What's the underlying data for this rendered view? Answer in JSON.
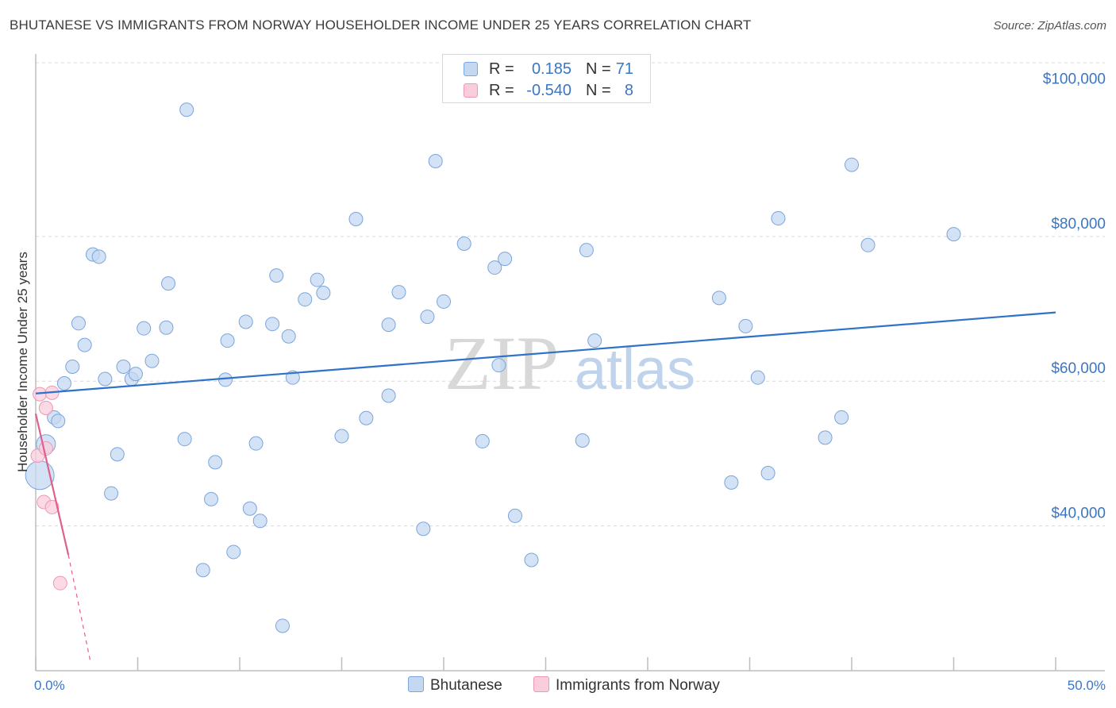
{
  "title": "BHUTANESE VS IMMIGRANTS FROM NORWAY HOUSEHOLDER INCOME UNDER 25 YEARS CORRELATION CHART",
  "source": "Source: ZipAtlas.com",
  "watermark": {
    "zip": "ZIP",
    "atlas": "atlas"
  },
  "legend": {
    "rows": [
      {
        "r_label": "R =",
        "r_value": "0.185",
        "n_label": "N =",
        "n_value": "71"
      },
      {
        "r_label": "R =",
        "r_value": "-0.540",
        "n_label": "N =",
        "n_value": "8"
      }
    ]
  },
  "bottom_legend": {
    "series_a": "Bhutanese",
    "series_b": "Immigrants from Norway"
  },
  "chart_data": {
    "type": "scatter",
    "title": "BHUTANESE VS IMMIGRANTS FROM NORWAY HOUSEHOLDER INCOME UNDER 25 YEARS CORRELATION CHART",
    "xlabel": "",
    "ylabel": "Householder Income Under 25 years",
    "xlim": [
      0,
      50
    ],
    "ylim": [
      20000,
      104000
    ],
    "x_tick_labels": [
      {
        "value": 0,
        "label": "0.0%"
      },
      {
        "value": 50,
        "label": "50.0%"
      }
    ],
    "y_ticks": [
      {
        "value": 40000,
        "label": "$40,000"
      },
      {
        "value": 60000,
        "label": "$60,000"
      },
      {
        "value": 80000,
        "label": "$80,000"
      },
      {
        "value": 100000,
        "label": "$100,000"
      }
    ],
    "colors": {
      "blue_fill": "#c5d8f2",
      "blue_stroke": "#7aa5de",
      "blue_line": "#2f72c9",
      "pink_fill": "#f9cddc",
      "pink_stroke": "#ee98b5",
      "pink_line": "#e05f8e",
      "grid": "#d9d9d9",
      "axis": "#bdbdbd",
      "watermark": "#d8d8d8",
      "watermark_atlas": "#c0d3ec"
    },
    "series": [
      {
        "name": "Bhutanese",
        "r": 0.185,
        "n": 71,
        "trend": {
          "x": [
            0,
            50
          ],
          "y": [
            58300,
            69500
          ]
        },
        "points": [
          {
            "x": 0.2,
            "y": 47000,
            "s": 3
          },
          {
            "x": 0.5,
            "y": 51300,
            "s": 2
          },
          {
            "x": 0.9,
            "y": 55000
          },
          {
            "x": 1.1,
            "y": 54500
          },
          {
            "x": 1.4,
            "y": 59700
          },
          {
            "x": 1.8,
            "y": 62000
          },
          {
            "x": 2.1,
            "y": 68000
          },
          {
            "x": 2.4,
            "y": 65000
          },
          {
            "x": 2.8,
            "y": 77500
          },
          {
            "x": 3.1,
            "y": 77200
          },
          {
            "x": 3.4,
            "y": 60300
          },
          {
            "x": 3.7,
            "y": 44500
          },
          {
            "x": 4.0,
            "y": 49900
          },
          {
            "x": 4.3,
            "y": 62000
          },
          {
            "x": 4.7,
            "y": 60300
          },
          {
            "x": 4.9,
            "y": 61000
          },
          {
            "x": 5.3,
            "y": 67300
          },
          {
            "x": 5.7,
            "y": 62800
          },
          {
            "x": 6.4,
            "y": 67400
          },
          {
            "x": 6.5,
            "y": 73500
          },
          {
            "x": 7.4,
            "y": 97500
          },
          {
            "x": 7.3,
            "y": 52000
          },
          {
            "x": 8.2,
            "y": 33900
          },
          {
            "x": 8.6,
            "y": 43700
          },
          {
            "x": 8.8,
            "y": 48800
          },
          {
            "x": 9.3,
            "y": 60200
          },
          {
            "x": 9.4,
            "y": 65600
          },
          {
            "x": 9.7,
            "y": 36400
          },
          {
            "x": 10.3,
            "y": 68200
          },
          {
            "x": 10.5,
            "y": 42400
          },
          {
            "x": 10.8,
            "y": 51400
          },
          {
            "x": 11.0,
            "y": 40700
          },
          {
            "x": 11.6,
            "y": 67900
          },
          {
            "x": 11.8,
            "y": 74600
          },
          {
            "x": 12.1,
            "y": 26200
          },
          {
            "x": 12.4,
            "y": 66200
          },
          {
            "x": 12.6,
            "y": 60500
          },
          {
            "x": 13.2,
            "y": 71300
          },
          {
            "x": 13.8,
            "y": 74000
          },
          {
            "x": 14.1,
            "y": 72200
          },
          {
            "x": 15.0,
            "y": 52400
          },
          {
            "x": 15.7,
            "y": 82400
          },
          {
            "x": 16.2,
            "y": 54900
          },
          {
            "x": 17.3,
            "y": 58000
          },
          {
            "x": 17.3,
            "y": 67800
          },
          {
            "x": 17.8,
            "y": 72300
          },
          {
            "x": 19.0,
            "y": 39600
          },
          {
            "x": 19.2,
            "y": 68900
          },
          {
            "x": 19.6,
            "y": 90400
          },
          {
            "x": 20.0,
            "y": 71000
          },
          {
            "x": 21.0,
            "y": 79000
          },
          {
            "x": 21.9,
            "y": 51700
          },
          {
            "x": 22.5,
            "y": 75700
          },
          {
            "x": 22.7,
            "y": 62200
          },
          {
            "x": 23.0,
            "y": 76900
          },
          {
            "x": 23.5,
            "y": 41400
          },
          {
            "x": 24.3,
            "y": 35300
          },
          {
            "x": 26.8,
            "y": 51800
          },
          {
            "x": 27.0,
            "y": 78100
          },
          {
            "x": 27.4,
            "y": 65600
          },
          {
            "x": 33.5,
            "y": 71500
          },
          {
            "x": 34.1,
            "y": 46000
          },
          {
            "x": 34.8,
            "y": 67600
          },
          {
            "x": 35.4,
            "y": 60500
          },
          {
            "x": 35.9,
            "y": 47300
          },
          {
            "x": 36.4,
            "y": 82500
          },
          {
            "x": 38.7,
            "y": 52200
          },
          {
            "x": 39.5,
            "y": 55000
          },
          {
            "x": 40.0,
            "y": 89900
          },
          {
            "x": 40.8,
            "y": 78800
          },
          {
            "x": 45.0,
            "y": 80300
          }
        ]
      },
      {
        "name": "Immigrants from Norway",
        "r": -0.54,
        "n": 8,
        "trend": {
          "x": [
            0,
            1.6
          ],
          "y": [
            55500,
            36000
          ]
        },
        "trend_dashed": {
          "x": [
            1.6,
            2.7
          ],
          "y": [
            36000,
            21000
          ]
        },
        "points": [
          {
            "x": 0.1,
            "y": 49700
          },
          {
            "x": 0.2,
            "y": 58200
          },
          {
            "x": 0.5,
            "y": 56300
          },
          {
            "x": 0.5,
            "y": 50700
          },
          {
            "x": 0.8,
            "y": 58400
          },
          {
            "x": 0.4,
            "y": 43300
          },
          {
            "x": 0.8,
            "y": 42600
          },
          {
            "x": 1.2,
            "y": 32100
          }
        ]
      }
    ]
  }
}
